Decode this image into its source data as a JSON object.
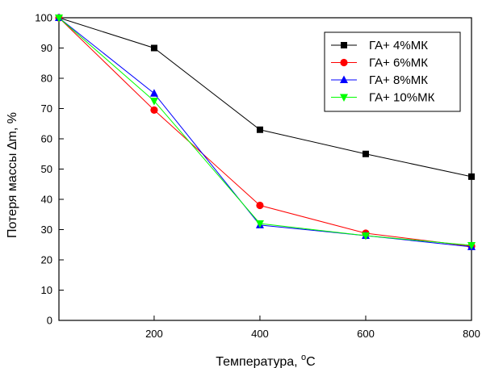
{
  "chart_data": {
    "type": "line",
    "xlabel_main": "Температура, ",
    "xlabel_sup": "o",
    "xlabel_unit": "C",
    "ylabel": "Потеря массы ∆m, %",
    "xlim": [
      20,
      800
    ],
    "ylim": [
      0,
      100
    ],
    "xticks": [
      200,
      400,
      600,
      800
    ],
    "yticks": [
      0,
      10,
      20,
      30,
      40,
      50,
      60,
      70,
      80,
      90,
      100
    ],
    "grid": false,
    "legend_position": "top-right",
    "x": [
      20,
      200,
      400,
      600,
      800
    ],
    "series": [
      {
        "name": "ГА+ 4%МК",
        "color": "#000000",
        "marker": "square",
        "values": [
          100,
          90,
          63,
          55,
          47.5
        ]
      },
      {
        "name": "ГА+ 6%МК",
        "color": "#ff0000",
        "marker": "circle",
        "values": [
          100,
          69.5,
          38,
          28.8,
          24.5
        ]
      },
      {
        "name": "ГА+ 8%МК",
        "color": "#0000ff",
        "marker": "triangle-up",
        "values": [
          100,
          75,
          31.5,
          28,
          24.3
        ]
      },
      {
        "name": "ГА+ 10%МК",
        "color": "#00ff00",
        "marker": "triangle-down",
        "values": [
          100,
          72.5,
          32,
          28,
          24.8
        ]
      }
    ]
  }
}
